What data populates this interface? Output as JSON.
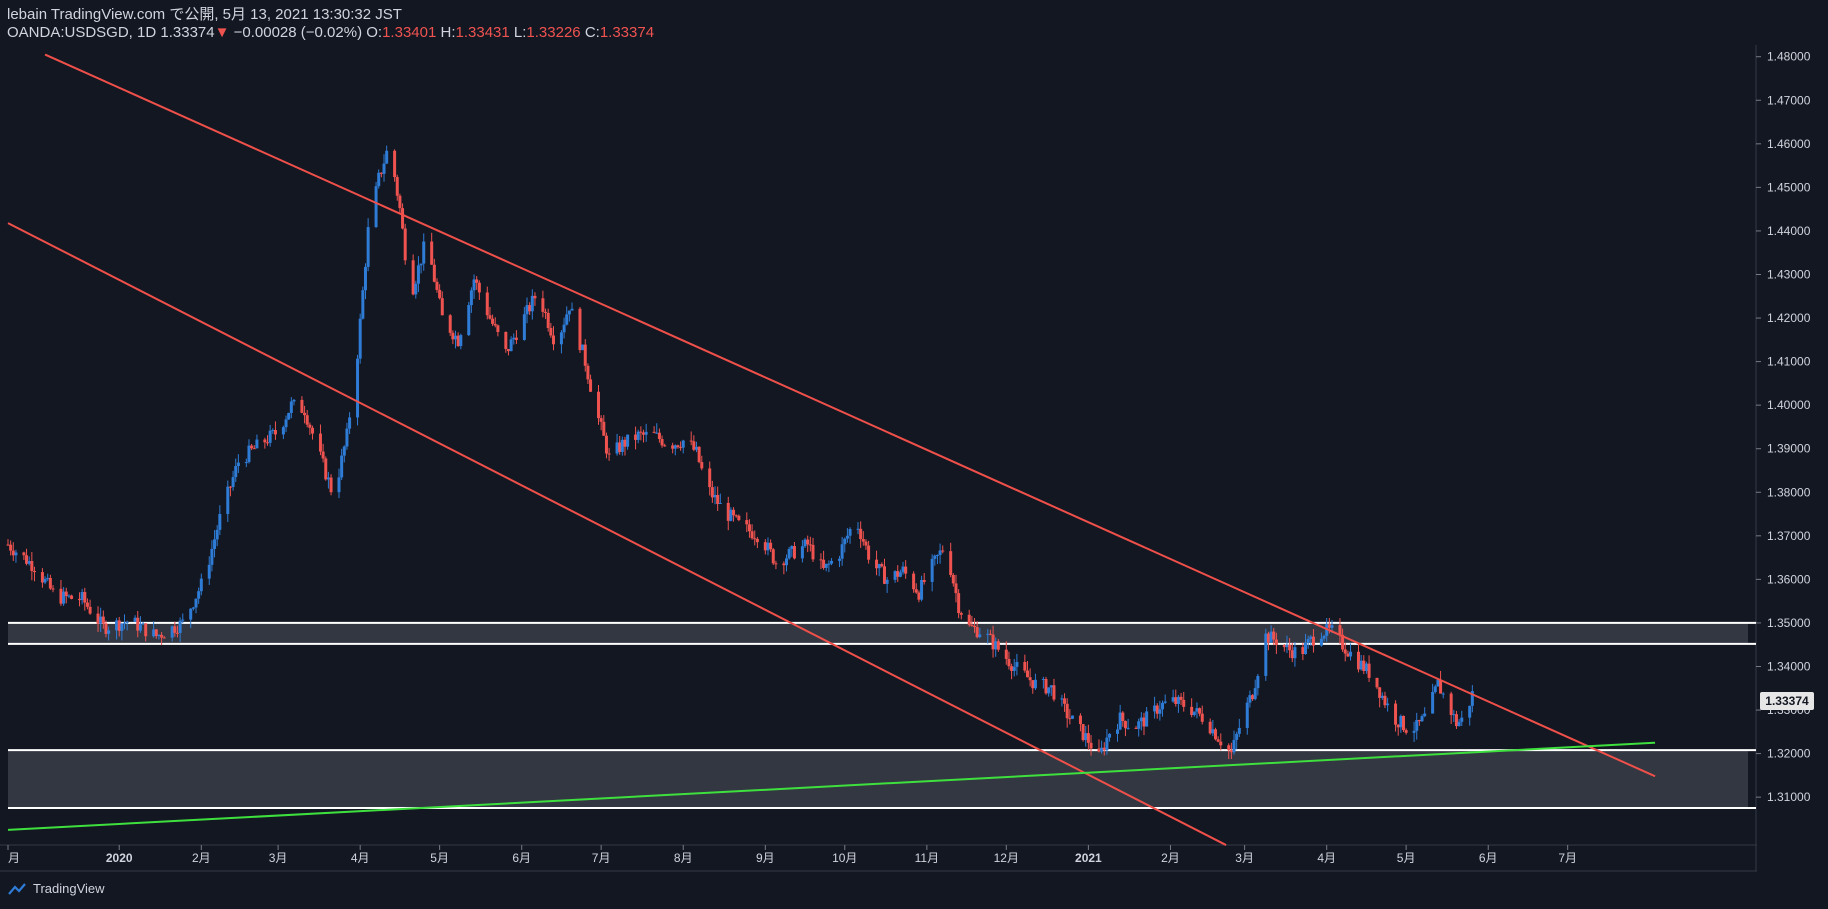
{
  "header": {
    "line1": "lebain TradingView.com で公開, 5月 13, 2021 13:30:32 JST",
    "symbol": "OANDA:USDSGD, 1D",
    "last": "1.33374",
    "arrow": "▼",
    "change": "−0.00028 (−0.02%)",
    "o_label": "O:",
    "o_value": "1.33401",
    "h_label": "H:",
    "h_value": "1.33431",
    "l_label": "L:",
    "l_value": "1.33226",
    "c_label": "C:",
    "c_value": "1.33374"
  },
  "footer": {
    "brand": "TradingView"
  },
  "colors": {
    "background": "#131722",
    "up": "#2e7cd6",
    "down": "#ef5350",
    "trend": "#f0504a",
    "support": "#3ee03e",
    "zone": "#3a3d46"
  },
  "chart_data": {
    "type": "candlestick",
    "ylim": [
      1.302,
      1.482
    ],
    "yticks": [
      "1.48000",
      "1.47000",
      "1.46000",
      "1.45000",
      "1.44000",
      "1.43000",
      "1.42000",
      "1.41000",
      "1.40000",
      "1.39000",
      "1.38000",
      "1.37000",
      "1.36000",
      "1.35000",
      "1.34000",
      "1.33000",
      "1.32000",
      "1.31000"
    ],
    "xticks": [
      {
        "label": "月",
        "day": -42
      },
      {
        "label": "2020",
        "day": 0
      },
      {
        "label": "2月",
        "day": 31
      },
      {
        "label": "3月",
        "day": 60
      },
      {
        "label": "4月",
        "day": 91
      },
      {
        "label": "5月",
        "day": 121
      },
      {
        "label": "6月",
        "day": 152
      },
      {
        "label": "7月",
        "day": 182
      },
      {
        "label": "8月",
        "day": 213
      },
      {
        "label": "9月",
        "day": 244
      },
      {
        "label": "10月",
        "day": 274
      },
      {
        "label": "11月",
        "day": 305
      },
      {
        "label": "12月",
        "day": 335
      },
      {
        "label": "2021",
        "day": 366
      },
      {
        "label": "2月",
        "day": 397
      },
      {
        "label": "3月",
        "day": 425
      },
      {
        "label": "4月",
        "day": 456
      },
      {
        "label": "5月",
        "day": 486
      },
      {
        "label": "6月",
        "day": 517
      },
      {
        "label": "7月",
        "day": 547
      }
    ],
    "last_price": "1.33374",
    "zones": [
      {
        "name": "resistance-zone",
        "from": 1.3452,
        "to": 1.35
      },
      {
        "name": "support-zone",
        "from": 1.3075,
        "to": 1.3208
      }
    ],
    "trendlines": [
      {
        "name": "upper-channel-line",
        "color": "trend",
        "from": {
          "day": -28,
          "price": 1.4805
        },
        "to": {
          "day": 580,
          "price": 1.3148
        }
      },
      {
        "name": "lower-channel-line",
        "color": "trend",
        "from": {
          "day": -42,
          "price": 1.4418
        },
        "to": {
          "day": 418,
          "price": 1.299
        }
      },
      {
        "name": "green-support-line",
        "color": "support",
        "from": {
          "day": -42,
          "price": 1.3025
        },
        "to": {
          "day": 580,
          "price": 1.3225
        }
      }
    ],
    "anchors": [
      [
        -42,
        1.368
      ],
      [
        -32,
        1.363
      ],
      [
        -24,
        1.356
      ],
      [
        -14,
        1.3555
      ],
      [
        -6,
        1.349
      ],
      [
        4,
        1.3505
      ],
      [
        14,
        1.347
      ],
      [
        24,
        1.35
      ],
      [
        32,
        1.36
      ],
      [
        38,
        1.374
      ],
      [
        45,
        1.387
      ],
      [
        53,
        1.391
      ],
      [
        60,
        1.394
      ],
      [
        65,
        1.4
      ],
      [
        70,
        1.399
      ],
      [
        76,
        1.388
      ],
      [
        81,
        1.379
      ],
      [
        86,
        1.393
      ],
      [
        90,
        1.412
      ],
      [
        94,
        1.44
      ],
      [
        98,
        1.452
      ],
      [
        102,
        1.46
      ],
      [
        106,
        1.445
      ],
      [
        110,
        1.425
      ],
      [
        116,
        1.438
      ],
      [
        122,
        1.42
      ],
      [
        128,
        1.415
      ],
      [
        134,
        1.429
      ],
      [
        140,
        1.42
      ],
      [
        146,
        1.412
      ],
      [
        152,
        1.419
      ],
      [
        158,
        1.426
      ],
      [
        165,
        1.414
      ],
      [
        170,
        1.423
      ],
      [
        176,
        1.41
      ],
      [
        180,
        1.399
      ],
      [
        185,
        1.388
      ],
      [
        190,
        1.391
      ],
      [
        196,
        1.393
      ],
      [
        202,
        1.393
      ],
      [
        208,
        1.391
      ],
      [
        214,
        1.392
      ],
      [
        218,
        1.389
      ],
      [
        222,
        1.381
      ],
      [
        228,
        1.376
      ],
      [
        235,
        1.372
      ],
      [
        242,
        1.37
      ],
      [
        248,
        1.364
      ],
      [
        254,
        1.366
      ],
      [
        260,
        1.368
      ],
      [
        266,
        1.362
      ],
      [
        272,
        1.366
      ],
      [
        278,
        1.374
      ],
      [
        284,
        1.364
      ],
      [
        290,
        1.36
      ],
      [
        296,
        1.362
      ],
      [
        302,
        1.357
      ],
      [
        306,
        1.362
      ],
      [
        312,
        1.368
      ],
      [
        317,
        1.354
      ],
      [
        321,
        1.349
      ],
      [
        326,
        1.348
      ],
      [
        332,
        1.344
      ],
      [
        338,
        1.34
      ],
      [
        346,
        1.336
      ],
      [
        352,
        1.335
      ],
      [
        358,
        1.329
      ],
      [
        362,
        1.326
      ],
      [
        366,
        1.323
      ],
      [
        370,
        1.319
      ],
      [
        374,
        1.325
      ],
      [
        378,
        1.328
      ],
      [
        383,
        1.326
      ],
      [
        388,
        1.328
      ],
      [
        393,
        1.331
      ],
      [
        398,
        1.332
      ],
      [
        403,
        1.331
      ],
      [
        410,
        1.328
      ],
      [
        416,
        1.323
      ],
      [
        420,
        1.32
      ],
      [
        424,
        1.328
      ],
      [
        428,
        1.334
      ],
      [
        433,
        1.347
      ],
      [
        437,
        1.346
      ],
      [
        441,
        1.344
      ],
      [
        446,
        1.343
      ],
      [
        450,
        1.346
      ],
      [
        454,
        1.348
      ],
      [
        458,
        1.348
      ],
      [
        462,
        1.345
      ],
      [
        468,
        1.341
      ],
      [
        473,
        1.338
      ],
      [
        478,
        1.332
      ],
      [
        482,
        1.328
      ],
      [
        486,
        1.326
      ],
      [
        490,
        1.326
      ],
      [
        494,
        1.329
      ],
      [
        498,
        1.336
      ],
      [
        502,
        1.331
      ],
      [
        505,
        1.327
      ],
      [
        508,
        1.328
      ],
      [
        511,
        1.3337
      ]
    ]
  }
}
